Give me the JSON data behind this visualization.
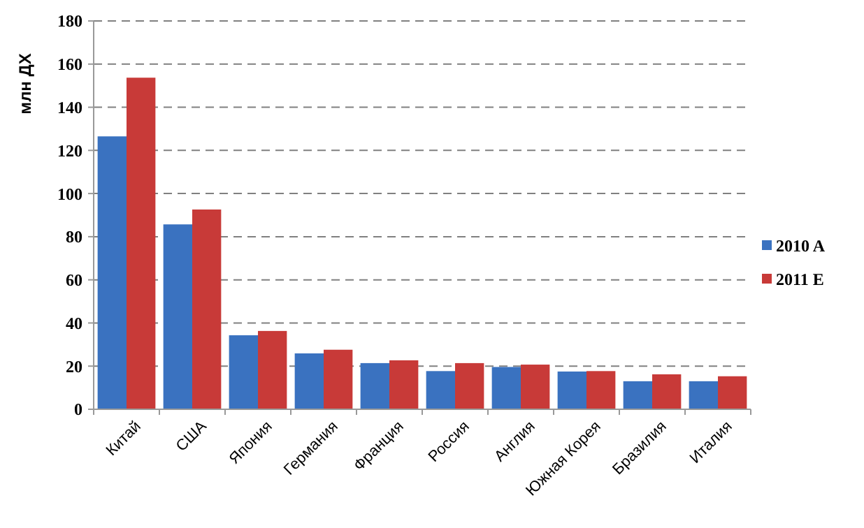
{
  "chart_data": {
    "type": "bar",
    "ylabel": "млн ДХ",
    "categories": [
      "Китай",
      "США",
      "Япония",
      "Германия",
      "Франция",
      "Россия",
      "Англия",
      "Южная Корея",
      "Бразилия",
      "Италия"
    ],
    "series": [
      {
        "name": "2010 A",
        "color": "#3a72c0",
        "values": [
          126.5,
          85.7,
          34.3,
          25.9,
          21.4,
          17.7,
          19.6,
          17.5,
          13.0,
          13.0
        ]
      },
      {
        "name": "2011 E",
        "color": "#c83a38",
        "values": [
          153.7,
          92.6,
          36.3,
          27.6,
          22.7,
          21.4,
          20.7,
          17.7,
          16.2,
          15.3
        ]
      }
    ],
    "ylim": [
      0,
      180
    ],
    "yticks": [
      0,
      20,
      40,
      60,
      80,
      100,
      120,
      140,
      160,
      180
    ],
    "grid": "y",
    "legend": "right"
  }
}
